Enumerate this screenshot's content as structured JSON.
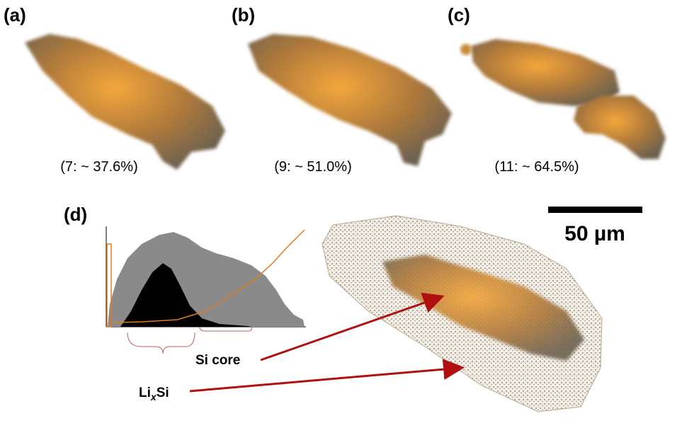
{
  "panels": [
    {
      "label": "(a)",
      "caption": "(7: ~ 37.6%)"
    },
    {
      "label": "(b)",
      "caption": "(9: ~ 51.0%)"
    },
    {
      "label": "(c)",
      "caption": "(11: ~ 64.5%)"
    },
    {
      "label": "(d)"
    }
  ],
  "scale_bar": "50 µm",
  "annotations": {
    "si_core": "Si core",
    "lixsi": [
      "Li",
      "x",
      "Si"
    ]
  }
}
